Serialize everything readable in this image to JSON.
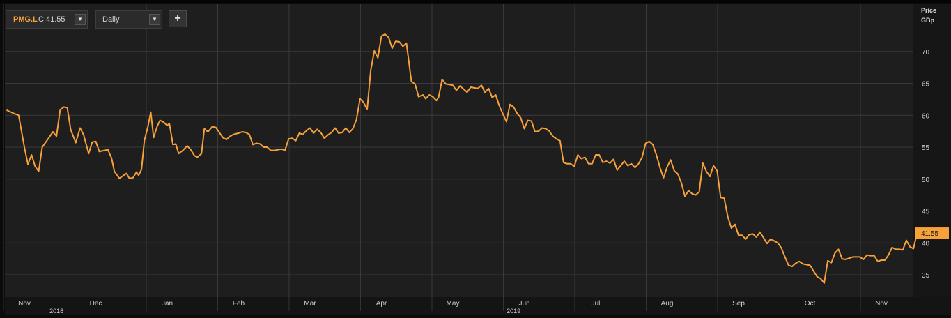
{
  "toolbar": {
    "ticker": "PMG.L",
    "close_label": "C 41.55",
    "period": "Daily",
    "add_icon": "plus-icon",
    "dropdown_icon": "triangle-down-icon"
  },
  "colors": {
    "background": "#0b0b0b",
    "plot_background": "#1e1e1e",
    "grid": "#3a3a3a",
    "line": "#f7a13b",
    "last_price_tag": "#f7a13b"
  },
  "chart_data": {
    "type": "line",
    "title": "",
    "ylabel_lines": [
      "Price",
      "GBp"
    ],
    "ylim": [
      33,
      76
    ],
    "yticks": [
      35,
      40,
      45,
      50,
      55,
      60,
      65,
      70
    ],
    "grid": true,
    "last_price_label": "41.55",
    "month_ticks": [
      {
        "label": "Nov",
        "x": 0
      },
      {
        "label": "Dec",
        "x": 1
      },
      {
        "label": "Jan",
        "x": 2
      },
      {
        "label": "Feb",
        "x": 3
      },
      {
        "label": "Mar",
        "x": 4
      },
      {
        "label": "Apr",
        "x": 5
      },
      {
        "label": "May",
        "x": 6
      },
      {
        "label": "Jun",
        "x": 7
      },
      {
        "label": "Jul",
        "x": 8
      },
      {
        "label": "Aug",
        "x": 9
      },
      {
        "label": "Sep",
        "x": 10
      },
      {
        "label": "Oct",
        "x": 11
      },
      {
        "label": "Nov",
        "x": 12
      }
    ],
    "year_labels": [
      {
        "label": "2018",
        "x": 0.45
      },
      {
        "label": "2019",
        "x": 6.85
      }
    ],
    "series": [
      {
        "values": [
          [
            -0.25,
            60.8
          ],
          [
            -0.15,
            60.3
          ],
          [
            -0.08,
            60.0
          ],
          [
            0.0,
            55.0
          ],
          [
            0.05,
            52.3
          ],
          [
            0.1,
            53.8
          ],
          [
            0.15,
            52.0
          ],
          [
            0.2,
            51.2
          ],
          [
            0.25,
            55.0
          ],
          [
            0.32,
            56.1
          ],
          [
            0.4,
            57.4
          ],
          [
            0.45,
            56.7
          ],
          [
            0.5,
            60.8
          ],
          [
            0.55,
            61.3
          ],
          [
            0.6,
            61.2
          ],
          [
            0.65,
            57.7
          ],
          [
            0.72,
            55.7
          ],
          [
            0.78,
            58.0
          ],
          [
            0.83,
            56.9
          ],
          [
            0.9,
            54.0
          ],
          [
            0.95,
            55.8
          ],
          [
            1.0,
            55.9
          ],
          [
            1.05,
            54.3
          ],
          [
            1.12,
            54.5
          ],
          [
            1.17,
            54.6
          ],
          [
            1.22,
            53.3
          ],
          [
            1.26,
            51.2
          ],
          [
            1.3,
            50.6
          ],
          [
            1.33,
            50.1
          ],
          [
            1.38,
            50.5
          ],
          [
            1.43,
            50.9
          ],
          [
            1.47,
            50.1
          ],
          [
            1.52,
            50.2
          ],
          [
            1.57,
            51.1
          ],
          [
            1.6,
            50.6
          ],
          [
            1.64,
            51.5
          ],
          [
            1.68,
            56.0
          ],
          [
            1.73,
            58.2
          ],
          [
            1.77,
            60.5
          ],
          [
            1.81,
            56.5
          ],
          [
            1.86,
            58.3
          ],
          [
            1.9,
            59.2
          ],
          [
            1.95,
            58.9
          ],
          [
            2.0,
            58.4
          ],
          [
            2.03,
            58.7
          ],
          [
            2.08,
            55.4
          ],
          [
            2.12,
            55.5
          ],
          [
            2.16,
            54.0
          ],
          [
            2.22,
            54.5
          ],
          [
            2.28,
            55.2
          ],
          [
            2.33,
            54.6
          ],
          [
            2.38,
            53.7
          ],
          [
            2.42,
            53.4
          ],
          [
            2.48,
            54.0
          ],
          [
            2.52,
            57.9
          ],
          [
            2.57,
            57.4
          ],
          [
            2.63,
            58.2
          ],
          [
            2.68,
            58.1
          ],
          [
            2.73,
            57.3
          ],
          [
            2.78,
            56.5
          ],
          [
            2.83,
            56.2
          ],
          [
            2.88,
            56.7
          ],
          [
            2.93,
            57.0
          ],
          [
            3.0,
            57.2
          ],
          [
            3.05,
            57.4
          ],
          [
            3.1,
            57.3
          ],
          [
            3.15,
            57.0
          ],
          [
            3.2,
            55.4
          ],
          [
            3.25,
            55.6
          ],
          [
            3.3,
            55.5
          ],
          [
            3.35,
            55.0
          ],
          [
            3.4,
            55.0
          ],
          [
            3.45,
            54.5
          ],
          [
            3.5,
            54.5
          ],
          [
            3.55,
            54.6
          ],
          [
            3.6,
            54.7
          ],
          [
            3.65,
            54.5
          ],
          [
            3.7,
            56.3
          ],
          [
            3.75,
            56.4
          ],
          [
            3.8,
            56.0
          ],
          [
            3.85,
            57.2
          ],
          [
            3.9,
            57.0
          ],
          [
            3.95,
            57.6
          ],
          [
            4.0,
            58.0
          ],
          [
            4.05,
            57.2
          ],
          [
            4.1,
            57.8
          ],
          [
            4.15,
            57.3
          ],
          [
            4.2,
            56.4
          ],
          [
            4.25,
            56.9
          ],
          [
            4.3,
            57.3
          ],
          [
            4.35,
            58.0
          ],
          [
            4.4,
            57.2
          ],
          [
            4.45,
            57.3
          ],
          [
            4.5,
            58.0
          ],
          [
            4.55,
            57.3
          ],
          [
            4.6,
            57.9
          ],
          [
            4.65,
            59.3
          ],
          [
            4.7,
            62.6
          ],
          [
            4.75,
            62.0
          ],
          [
            4.8,
            60.9
          ],
          [
            4.85,
            67.0
          ],
          [
            4.9,
            70.1
          ],
          [
            4.95,
            69.0
          ],
          [
            5.0,
            72.4
          ],
          [
            5.05,
            72.7
          ],
          [
            5.1,
            72.2
          ],
          [
            5.15,
            70.5
          ],
          [
            5.2,
            71.6
          ],
          [
            5.25,
            71.5
          ],
          [
            5.3,
            70.8
          ],
          [
            5.35,
            71.3
          ],
          [
            5.42,
            65.3
          ],
          [
            5.47,
            64.9
          ],
          [
            5.52,
            62.9
          ],
          [
            5.58,
            63.2
          ],
          [
            5.62,
            62.6
          ],
          [
            5.67,
            63.2
          ],
          [
            5.72,
            62.9
          ],
          [
            5.77,
            62.3
          ],
          [
            5.8,
            62.8
          ],
          [
            5.85,
            65.6
          ],
          [
            5.9,
            64.9
          ],
          [
            5.95,
            64.8
          ],
          [
            6.0,
            64.7
          ],
          [
            6.05,
            63.9
          ],
          [
            6.1,
            64.6
          ],
          [
            6.15,
            64.1
          ],
          [
            6.2,
            63.6
          ],
          [
            6.25,
            64.4
          ],
          [
            6.3,
            64.3
          ],
          [
            6.35,
            64.2
          ],
          [
            6.4,
            64.7
          ],
          [
            6.45,
            63.6
          ],
          [
            6.5,
            64.2
          ],
          [
            6.55,
            62.8
          ],
          [
            6.6,
            63.2
          ],
          [
            6.65,
            61.5
          ],
          [
            6.7,
            60.2
          ],
          [
            6.75,
            59.0
          ],
          [
            6.8,
            61.7
          ],
          [
            6.85,
            61.3
          ],
          [
            6.9,
            60.3
          ],
          [
            6.95,
            59.6
          ],
          [
            7.0,
            57.9
          ],
          [
            7.05,
            59.2
          ],
          [
            7.1,
            59.1
          ],
          [
            7.15,
            57.4
          ],
          [
            7.2,
            57.5
          ],
          [
            7.25,
            58.0
          ],
          [
            7.3,
            57.9
          ],
          [
            7.35,
            57.5
          ],
          [
            7.4,
            56.7
          ],
          [
            7.45,
            56.3
          ],
          [
            7.5,
            56.0
          ],
          [
            7.55,
            52.6
          ],
          [
            7.6,
            52.4
          ],
          [
            7.65,
            52.4
          ],
          [
            7.7,
            52.0
          ],
          [
            7.75,
            53.8
          ],
          [
            7.8,
            53.2
          ],
          [
            7.85,
            53.4
          ],
          [
            7.9,
            52.4
          ],
          [
            7.95,
            52.4
          ],
          [
            8.0,
            53.8
          ],
          [
            8.05,
            53.8
          ],
          [
            8.1,
            52.6
          ],
          [
            8.15,
            52.8
          ],
          [
            8.2,
            52.5
          ],
          [
            8.25,
            53.1
          ],
          [
            8.3,
            51.4
          ],
          [
            8.35,
            52.1
          ],
          [
            8.4,
            52.8
          ],
          [
            8.45,
            52.1
          ],
          [
            8.5,
            52.4
          ],
          [
            8.55,
            51.8
          ],
          [
            8.6,
            52.4
          ],
          [
            8.65,
            53.4
          ],
          [
            8.7,
            55.6
          ],
          [
            8.75,
            55.9
          ],
          [
            8.8,
            55.4
          ],
          [
            8.85,
            53.8
          ],
          [
            8.9,
            51.8
          ],
          [
            8.95,
            50.2
          ],
          [
            9.0,
            51.9
          ],
          [
            9.05,
            53.0
          ],
          [
            9.1,
            51.3
          ],
          [
            9.15,
            50.8
          ],
          [
            9.2,
            49.4
          ],
          [
            9.25,
            47.3
          ],
          [
            9.3,
            48.2
          ],
          [
            9.35,
            47.7
          ],
          [
            9.4,
            47.5
          ],
          [
            9.45,
            48.0
          ],
          [
            9.5,
            52.5
          ],
          [
            9.55,
            51.2
          ],
          [
            9.6,
            50.4
          ],
          [
            9.65,
            52.1
          ],
          [
            9.7,
            51.3
          ],
          [
            9.75,
            47.1
          ],
          [
            9.8,
            47.0
          ],
          [
            9.85,
            44.1
          ],
          [
            9.9,
            42.3
          ],
          [
            9.95,
            42.9
          ],
          [
            10.0,
            41.2
          ],
          [
            10.05,
            41.2
          ],
          [
            10.1,
            40.6
          ],
          [
            10.15,
            41.3
          ],
          [
            10.2,
            41.4
          ],
          [
            10.25,
            40.9
          ],
          [
            10.3,
            41.7
          ],
          [
            10.35,
            40.8
          ],
          [
            10.4,
            39.9
          ],
          [
            10.45,
            40.6
          ],
          [
            10.5,
            40.3
          ],
          [
            10.55,
            40.0
          ],
          [
            10.6,
            39.2
          ],
          [
            10.65,
            37.8
          ],
          [
            10.7,
            36.5
          ],
          [
            10.75,
            36.3
          ],
          [
            10.8,
            36.8
          ],
          [
            10.85,
            37.1
          ],
          [
            10.9,
            36.7
          ],
          [
            10.95,
            36.6
          ],
          [
            11.0,
            36.5
          ],
          [
            11.05,
            35.6
          ],
          [
            11.1,
            34.7
          ],
          [
            11.15,
            34.4
          ],
          [
            11.2,
            33.7
          ],
          [
            11.25,
            37.2
          ],
          [
            11.3,
            36.9
          ],
          [
            11.35,
            38.4
          ],
          [
            11.4,
            39.0
          ],
          [
            11.45,
            37.5
          ],
          [
            11.5,
            37.4
          ],
          [
            11.55,
            37.6
          ],
          [
            11.6,
            37.8
          ],
          [
            11.65,
            37.8
          ],
          [
            11.7,
            37.8
          ],
          [
            11.75,
            37.4
          ],
          [
            11.8,
            38.1
          ],
          [
            11.85,
            38.0
          ],
          [
            11.9,
            38.0
          ],
          [
            11.95,
            37.1
          ],
          [
            12.0,
            37.3
          ],
          [
            12.05,
            37.3
          ],
          [
            12.1,
            38.1
          ],
          [
            12.15,
            39.3
          ],
          [
            12.2,
            39.0
          ],
          [
            12.25,
            39.0
          ],
          [
            12.3,
            38.9
          ],
          [
            12.35,
            40.4
          ],
          [
            12.4,
            39.4
          ],
          [
            12.45,
            39.1
          ],
          [
            12.5,
            41.55
          ]
        ]
      }
    ]
  }
}
